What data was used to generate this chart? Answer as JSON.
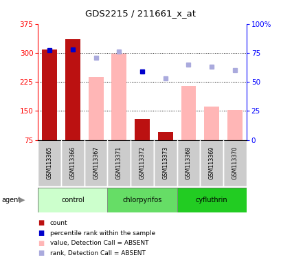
{
  "title": "GDS2215 / 211661_x_at",
  "samples": [
    "GSM113365",
    "GSM113366",
    "GSM113367",
    "GSM113371",
    "GSM113372",
    "GSM113373",
    "GSM113368",
    "GSM113369",
    "GSM113370"
  ],
  "ylim_left": [
    75,
    375
  ],
  "ylim_right": [
    0,
    100
  ],
  "yticks_left": [
    75,
    150,
    225,
    300,
    375
  ],
  "yticks_right": [
    0,
    25,
    50,
    75,
    100
  ],
  "count_bars": {
    "GSM113365": 308,
    "GSM113366": 335,
    "GSM113372": 130,
    "GSM113373": 95
  },
  "absent_value_bars": {
    "GSM113367": 238,
    "GSM113371": 298,
    "GSM113368": 215,
    "GSM113369": 162,
    "GSM113370": 153
  },
  "percentile_rank_present": {
    "GSM113365": 77,
    "GSM113366": 78,
    "GSM113372": 59
  },
  "rank_absent": {
    "GSM113367": 71,
    "GSM113371": 76,
    "GSM113373": 53,
    "GSM113368": 65,
    "GSM113369": 63,
    "GSM113370": 60
  },
  "count_color": "#bb1111",
  "absent_value_color": "#ffb6b6",
  "present_rank_color": "#0000cc",
  "absent_rank_color": "#aaaadd",
  "group_x": [
    {
      "start": 0,
      "end": 2,
      "name": "control",
      "color": "#ccffcc"
    },
    {
      "start": 3,
      "end": 5,
      "name": "chlorpyrifos",
      "color": "#66dd66"
    },
    {
      "start": 6,
      "end": 8,
      "name": "cyfluthrin",
      "color": "#22cc22"
    }
  ],
  "gridlines": [
    150,
    225,
    300
  ],
  "agent_label": "agent"
}
